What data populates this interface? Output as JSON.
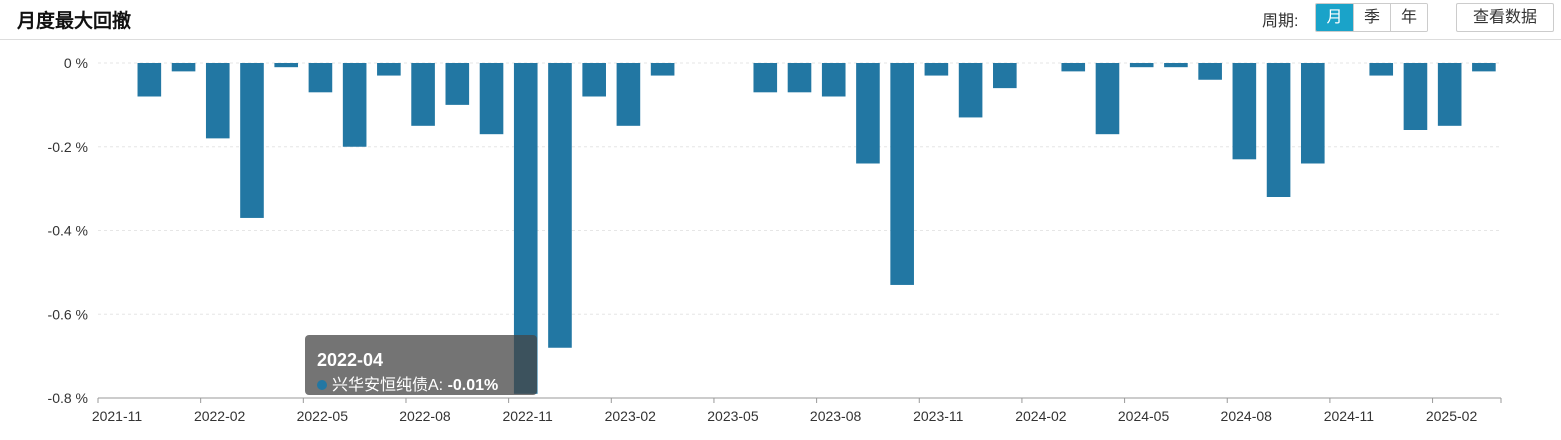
{
  "header": {
    "title": "月度最大回撤",
    "period_label": "周期:",
    "period_buttons": [
      "月",
      "季",
      "年"
    ],
    "active_period": 0,
    "view_data_label": "查看数据"
  },
  "colors": {
    "bar": "#2277a3",
    "accent": "#1aa3c9"
  },
  "tooltip": {
    "title": "2022-04",
    "series_name": "兴华安恒纯债A:",
    "value": "-0.01%"
  },
  "chart_data": {
    "type": "bar",
    "title": "月度最大回撤",
    "categories": [
      "2021-11",
      "2021-12",
      "2022-01",
      "2022-02",
      "2022-03",
      "2022-04",
      "2022-05",
      "2022-06",
      "2022-07",
      "2022-08",
      "2022-09",
      "2022-10",
      "2022-11",
      "2022-12",
      "2023-01",
      "2023-02",
      "2023-03",
      "2023-04",
      "2023-05",
      "2023-06",
      "2023-07",
      "2023-08",
      "2023-09",
      "2023-10",
      "2023-11",
      "2023-12",
      "2024-01",
      "2024-02",
      "2024-03",
      "2024-04",
      "2024-05",
      "2024-06",
      "2024-07",
      "2024-08",
      "2024-09",
      "2024-10",
      "2024-11",
      "2024-12",
      "2025-01",
      "2025-02",
      "2025-03"
    ],
    "series": [
      {
        "values": [
          0,
          -0.08,
          -0.02,
          -0.18,
          -0.37,
          -0.01,
          -0.07,
          -0.2,
          -0.03,
          -0.15,
          -0.1,
          -0.17,
          -0.79,
          -0.68,
          -0.08,
          -0.15,
          -0.03,
          0,
          0,
          -0.07,
          -0.07,
          -0.08,
          -0.24,
          -0.53,
          -0.03,
          -0.13,
          -0.06,
          0,
          -0.02,
          -0.17,
          -0.01,
          -0.01,
          -0.04,
          -0.23,
          -0.32,
          -0.24,
          0,
          -0.03,
          -0.16,
          -0.15,
          -0.02
        ]
      }
    ],
    "xtick_labels": [
      "2021-11",
      "2022-02",
      "2022-05",
      "2022-08",
      "2022-11",
      "2023-02",
      "2023-05",
      "2023-08",
      "2023-11",
      "2024-02",
      "2024-05",
      "2024-08",
      "2024-11",
      "2025-02"
    ],
    "ytick_labels": [
      "0 %",
      "-0.2 %",
      "-0.4 %",
      "-0.6 %",
      "-0.8 %"
    ],
    "ytick_values": [
      0,
      -0.2,
      -0.4,
      -0.6,
      -0.8
    ],
    "ylim": [
      -0.8,
      0
    ],
    "grid": true,
    "legend": "none"
  }
}
